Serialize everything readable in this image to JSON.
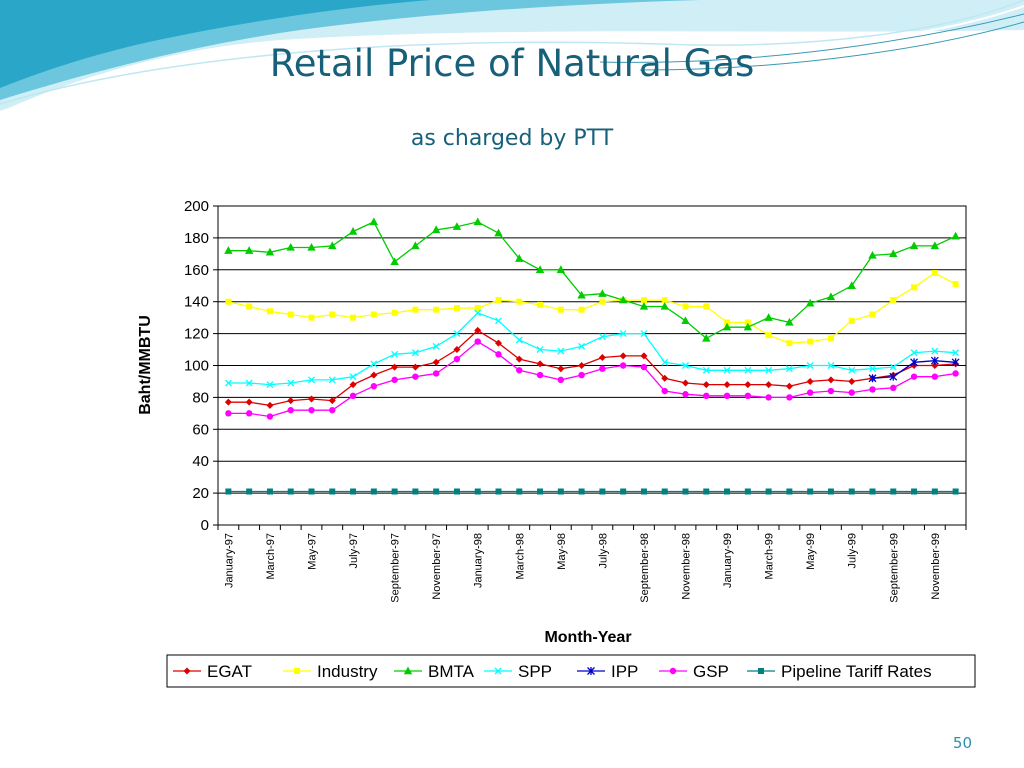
{
  "slide": {
    "title": "Retail Price of Natural Gas",
    "subtitle": "as charged by PTT",
    "page_number": "50"
  },
  "chart_data": {
    "type": "line",
    "title": "",
    "xlabel": "Month-Year",
    "ylabel": "Baht/MMBTU",
    "ylim": [
      0,
      200
    ],
    "y_ticks": [
      0,
      20,
      40,
      60,
      80,
      100,
      120,
      140,
      160,
      180,
      200
    ],
    "grid": "horizontal",
    "legend_position": "bottom",
    "categories": [
      "Jan-97",
      "Feb-97",
      "Mar-97",
      "Apr-97",
      "May-97",
      "Jun-97",
      "Jul-97",
      "Aug-97",
      "Sep-97",
      "Oct-97",
      "Nov-97",
      "Dec-97",
      "Jan-98",
      "Feb-98",
      "Mar-98",
      "Apr-98",
      "May-98",
      "Jun-98",
      "Jul-98",
      "Aug-98",
      "Sep-98",
      "Oct-98",
      "Nov-98",
      "Dec-98",
      "Jan-99",
      "Feb-99",
      "Mar-99",
      "Apr-99",
      "May-99",
      "Jun-99",
      "Jul-99",
      "Aug-99",
      "Sep-99",
      "Oct-99",
      "Nov-99",
      "Dec-99"
    ],
    "tick_labels": [
      "January-97",
      "March-97",
      "May-97",
      "July-97",
      "September-97",
      "November-97",
      "January-98",
      "March-98",
      "May-98",
      "July-98",
      "September-98",
      "November-98",
      "January-99",
      "March-99",
      "May-99",
      "July-99",
      "September-99",
      "November-99"
    ],
    "series": [
      {
        "name": "EGAT",
        "color": "#dd0000",
        "marker": "diamond",
        "values": [
          77,
          77,
          75,
          78,
          79,
          78,
          88,
          94,
          99,
          99,
          102,
          110,
          122,
          114,
          104,
          101,
          98,
          100,
          105,
          106,
          106,
          92,
          89,
          88,
          88,
          88,
          88,
          87,
          90,
          91,
          90,
          92,
          94,
          100,
          100,
          101
        ]
      },
      {
        "name": "Industry",
        "color": "#ffff00",
        "marker": "square",
        "values": [
          140,
          137,
          134,
          132,
          130,
          132,
          130,
          132,
          133,
          135,
          135,
          136,
          136,
          141,
          140,
          138,
          135,
          135,
          140,
          141,
          141,
          141,
          137,
          137,
          127,
          127,
          119,
          114,
          115,
          117,
          128,
          132,
          141,
          149,
          158,
          151
        ]
      },
      {
        "name": "BMTA",
        "color": "#00cc00",
        "marker": "triangle",
        "values": [
          172,
          172,
          171,
          174,
          174,
          175,
          184,
          190,
          165,
          175,
          185,
          187,
          190,
          183,
          167,
          160,
          160,
          144,
          145,
          141,
          137,
          137,
          128,
          117,
          124,
          124,
          130,
          127,
          139,
          143,
          150,
          169,
          170,
          175,
          175,
          181
        ]
      },
      {
        "name": "SPP",
        "color": "#00ffff",
        "marker": "x",
        "values": [
          89,
          89,
          88,
          89,
          91,
          91,
          93,
          101,
          107,
          108,
          112,
          120,
          133,
          128,
          116,
          110,
          109,
          112,
          118,
          120,
          120,
          102,
          100,
          97,
          97,
          97,
          97,
          98,
          100,
          100,
          97,
          98,
          99,
          108,
          109,
          108
        ]
      },
      {
        "name": "IPP",
        "color": "#0000cc",
        "marker": "star",
        "values": [
          null,
          null,
          null,
          null,
          null,
          null,
          null,
          null,
          null,
          null,
          null,
          null,
          null,
          null,
          null,
          null,
          null,
          null,
          null,
          null,
          null,
          null,
          null,
          null,
          null,
          null,
          null,
          null,
          null,
          null,
          null,
          92,
          93,
          102,
          103,
          102
        ]
      },
      {
        "name": "GSP",
        "color": "#ff00ff",
        "marker": "circle",
        "values": [
          70,
          70,
          68,
          72,
          72,
          72,
          81,
          87,
          91,
          93,
          95,
          104,
          115,
          107,
          97,
          94,
          91,
          94,
          98,
          100,
          99,
          84,
          82,
          81,
          81,
          81,
          80,
          80,
          83,
          84,
          83,
          85,
          86,
          93,
          93,
          95
        ]
      },
      {
        "name": "Pipeline Tariff Rates",
        "color": "#008080",
        "marker": "square",
        "values": [
          21,
          21,
          21,
          21,
          21,
          21,
          21,
          21,
          21,
          21,
          21,
          21,
          21,
          21,
          21,
          21,
          21,
          21,
          21,
          21,
          21,
          21,
          21,
          21,
          21,
          21,
          21,
          21,
          21,
          21,
          21,
          21,
          21,
          21,
          21,
          21
        ]
      }
    ]
  }
}
